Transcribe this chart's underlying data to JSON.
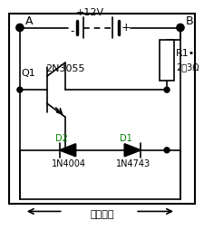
{
  "title": "",
  "bg_color": "#ffffff",
  "line_color": "#000000",
  "component_color": "#000000",
  "label_A": "A",
  "label_B": "B",
  "label_battery": "+12V",
  "label_battery_minus": "-",
  "label_battery_plus": "+",
  "label_R1": "R1•",
  "label_R1_val": "2～3Ω",
  "label_Q1": "Q1",
  "label_Q1_type": "2N3055",
  "label_D2": "D2",
  "label_D1": "D1",
  "label_D2_type": "1N4004",
  "label_D1_type": "1N4743",
  "label_load": "外接负载",
  "figsize": [
    2.26,
    2.54
  ],
  "dpi": 100
}
